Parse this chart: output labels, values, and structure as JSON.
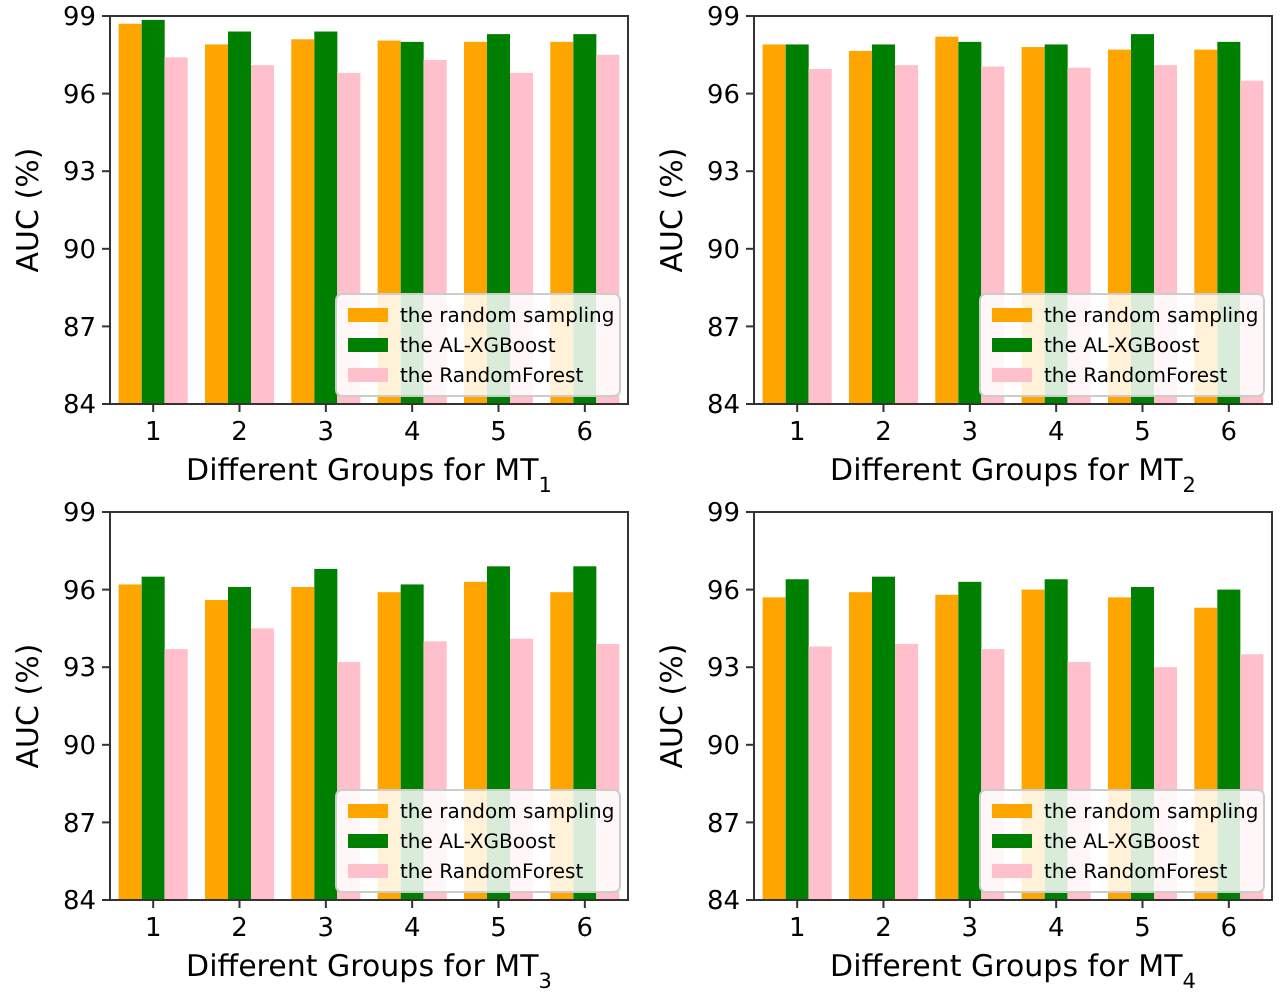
{
  "chart_data": [
    {
      "type": "bar",
      "xlabel": "Different Groups for MT$_{1}$",
      "ylabel": "AUC (%)",
      "categories": [
        "1",
        "2",
        "3",
        "4",
        "5",
        "6"
      ],
      "ylim": [
        84,
        99
      ],
      "yticks": [
        84,
        87,
        90,
        93,
        96,
        99
      ],
      "legend": "bottom right",
      "grid": false,
      "series": [
        {
          "name": "the random sampling",
          "color": "#ffa500",
          "values": [
            98.7,
            97.9,
            98.1,
            98.05,
            98.0,
            98.0
          ]
        },
        {
          "name": "the AL-XGBoost",
          "color": "#008000",
          "values": [
            98.85,
            98.4,
            98.4,
            98.0,
            98.3,
            98.3
          ]
        },
        {
          "name": "the RandomForest",
          "color": "#ffc0cb",
          "values": [
            97.4,
            97.1,
            96.8,
            97.3,
            96.8,
            97.5
          ]
        }
      ]
    },
    {
      "type": "bar",
      "xlabel": "Different Groups for MT$_{2}$",
      "ylabel": "AUC (%)",
      "categories": [
        "1",
        "2",
        "3",
        "4",
        "5",
        "6"
      ],
      "ylim": [
        84,
        99
      ],
      "yticks": [
        84,
        87,
        90,
        93,
        96,
        99
      ],
      "legend": "bottom right",
      "grid": false,
      "series": [
        {
          "name": "the random sampling",
          "color": "#ffa500",
          "values": [
            97.9,
            97.65,
            98.2,
            97.8,
            97.7,
            97.7
          ]
        },
        {
          "name": "the AL-XGBoost",
          "color": "#008000",
          "values": [
            97.9,
            97.9,
            98.0,
            97.9,
            98.3,
            98.0
          ]
        },
        {
          "name": "the RandomForest",
          "color": "#ffc0cb",
          "values": [
            96.95,
            97.1,
            97.05,
            97.0,
            97.1,
            96.5
          ]
        }
      ]
    },
    {
      "type": "bar",
      "xlabel": "Different Groups for MT$_{3}$",
      "ylabel": "AUC (%)",
      "categories": [
        "1",
        "2",
        "3",
        "4",
        "5",
        "6"
      ],
      "ylim": [
        84,
        99
      ],
      "yticks": [
        84,
        87,
        90,
        93,
        96,
        99
      ],
      "legend": "bottom right",
      "grid": false,
      "series": [
        {
          "name": "the random sampling",
          "color": "#ffa500",
          "values": [
            96.2,
            95.6,
            96.1,
            95.9,
            96.3,
            95.9
          ]
        },
        {
          "name": "the AL-XGBoost",
          "color": "#008000",
          "values": [
            96.5,
            96.1,
            96.8,
            96.2,
            96.9,
            96.9
          ]
        },
        {
          "name": "the RandomForest",
          "color": "#ffc0cb",
          "values": [
            93.7,
            94.5,
            93.2,
            94.0,
            94.1,
            93.9
          ]
        }
      ]
    },
    {
      "type": "bar",
      "xlabel": "Different Groups for MT$_{4}$",
      "ylabel": "AUC (%)",
      "categories": [
        "1",
        "2",
        "3",
        "4",
        "5",
        "6"
      ],
      "ylim": [
        84,
        99
      ],
      "yticks": [
        84,
        87,
        90,
        93,
        96,
        99
      ],
      "legend": "bottom right",
      "grid": false,
      "series": [
        {
          "name": "the random sampling",
          "color": "#ffa500",
          "values": [
            95.7,
            95.9,
            95.8,
            96.0,
            95.7,
            95.3
          ]
        },
        {
          "name": "the AL-XGBoost",
          "color": "#008000",
          "values": [
            96.4,
            96.5,
            96.3,
            96.4,
            96.1,
            96.0
          ]
        },
        {
          "name": "the RandomForest",
          "color": "#ffc0cb",
          "values": [
            93.8,
            93.9,
            93.7,
            93.2,
            93.0,
            93.5
          ]
        }
      ]
    }
  ]
}
